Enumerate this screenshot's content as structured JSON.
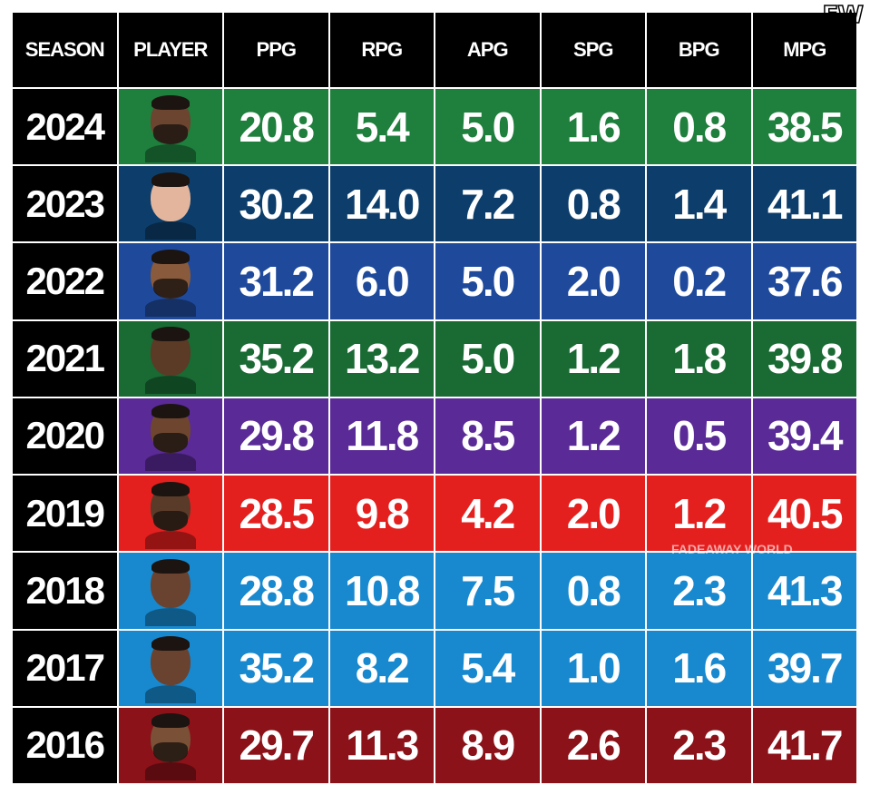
{
  "brand": {
    "logo_text": "FW",
    "watermark": "FADEAWAY WORLD"
  },
  "columns": [
    "SEASON",
    "PLAYER",
    "PPG",
    "RPG",
    "APG",
    "SPG",
    "BPG",
    "MPG"
  ],
  "rows": [
    {
      "season": "2024",
      "color": "#1f7f3d",
      "skin": "#6b4530",
      "beard": true,
      "stats": [
        "20.8",
        "5.4",
        "5.0",
        "1.6",
        "0.8",
        "38.5"
      ]
    },
    {
      "season": "2023",
      "color": "#0d3e6b",
      "skin": "#e2b59c",
      "beard": false,
      "stats": [
        "30.2",
        "14.0",
        "7.2",
        "0.8",
        "1.4",
        "41.1"
      ]
    },
    {
      "season": "2022",
      "color": "#1f4a9c",
      "skin": "#8a5a3c",
      "beard": true,
      "stats": [
        "31.2",
        "6.0",
        "5.0",
        "2.0",
        "0.2",
        "37.6"
      ]
    },
    {
      "season": "2021",
      "color": "#1a6a34",
      "skin": "#5b3a26",
      "beard": false,
      "stats": [
        "35.2",
        "13.2",
        "5.0",
        "1.2",
        "1.8",
        "39.8"
      ]
    },
    {
      "season": "2020",
      "color": "#5a2a96",
      "skin": "#6e4630",
      "beard": true,
      "stats": [
        "29.8",
        "11.8",
        "8.5",
        "1.2",
        "0.5",
        "39.4"
      ]
    },
    {
      "season": "2019",
      "color": "#e4201f",
      "skin": "#5a3a28",
      "beard": true,
      "stats": [
        "28.5",
        "9.8",
        "4.2",
        "2.0",
        "1.2",
        "40.5"
      ]
    },
    {
      "season": "2018",
      "color": "#1889cf",
      "skin": "#6a4230",
      "beard": false,
      "stats": [
        "28.8",
        "10.8",
        "7.5",
        "0.8",
        "2.3",
        "41.3"
      ]
    },
    {
      "season": "2017",
      "color": "#1889cf",
      "skin": "#6a4230",
      "beard": false,
      "stats": [
        "35.2",
        "8.2",
        "5.4",
        "1.0",
        "1.6",
        "39.7"
      ]
    },
    {
      "season": "2016",
      "color": "#8b1219",
      "skin": "#7a5036",
      "beard": true,
      "stats": [
        "29.7",
        "11.3",
        "8.9",
        "2.6",
        "2.3",
        "41.7"
      ]
    }
  ]
}
